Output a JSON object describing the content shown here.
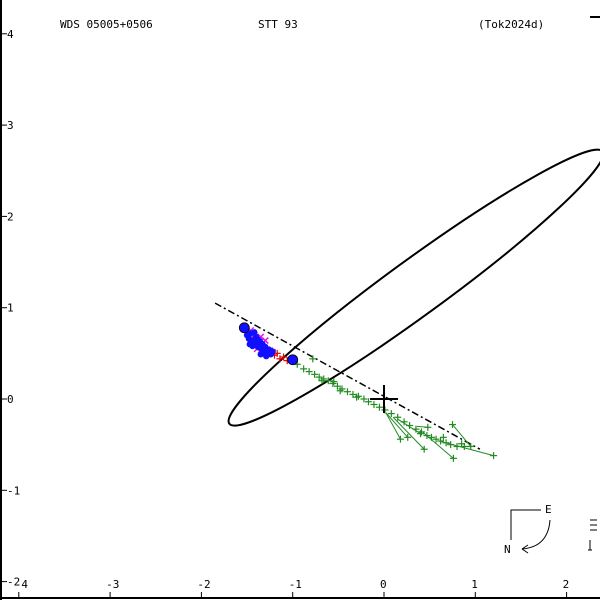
{
  "header": {
    "wds": "WDS 05005+0506",
    "discoverer": "STT  93",
    "reference": "(Tok2024d)"
  },
  "compass": {
    "east": "E",
    "north": "N"
  },
  "chart_data": {
    "type": "scatter",
    "title": "",
    "xlabel": "",
    "ylabel": "",
    "xlim": [
      -4,
      2.2
    ],
    "ylim": [
      -2,
      4.1
    ],
    "x_ticks": [
      -4,
      -3,
      -2,
      -1,
      0,
      1,
      2
    ],
    "x_tick_labels": [
      "-4",
      "-3",
      "-2",
      "-1",
      "0",
      "1",
      "2"
    ],
    "y_ticks": [
      4,
      3,
      2,
      1,
      0,
      -1,
      -2
    ],
    "y_tick_labels": [
      "4",
      "3",
      "2",
      "1",
      "0",
      "-1",
      "-2"
    ],
    "grid": false,
    "primary": [
      0,
      0
    ],
    "orbit": {
      "center": [
        0.35,
        1.22
      ],
      "semi_major": 2.53,
      "semi_minor": 0.305,
      "angle_deg": 36.1
    },
    "line_of_nodes": [
      [
        -1.85,
        1.05
      ],
      [
        1.05,
        -0.55
      ]
    ],
    "series": [
      {
        "name": "",
        "color": "#228B22",
        "marker": "plus",
        "points": [
          [
            -1.02,
            0.42
          ],
          [
            -0.95,
            0.38
          ],
          [
            -0.88,
            0.33
          ],
          [
            -0.82,
            0.3
          ],
          [
            -0.76,
            0.27
          ],
          [
            -0.71,
            0.24
          ],
          [
            -0.66,
            0.22
          ],
          [
            -0.61,
            0.2
          ],
          [
            -0.56,
            0.17
          ],
          [
            -0.51,
            0.14
          ],
          [
            -0.46,
            0.11
          ],
          [
            -0.4,
            0.08
          ],
          [
            -0.34,
            0.05
          ],
          [
            -0.28,
            0.03
          ],
          [
            -0.22,
            0.0
          ],
          [
            -0.17,
            -0.03
          ],
          [
            -0.11,
            -0.06
          ],
          [
            -0.05,
            -0.09
          ],
          [
            0.01,
            -0.12
          ],
          [
            0.08,
            -0.16
          ],
          [
            0.15,
            -0.2
          ],
          [
            0.22,
            -0.25
          ],
          [
            0.28,
            -0.29
          ],
          [
            0.35,
            -0.33
          ],
          [
            0.41,
            -0.36
          ],
          [
            0.47,
            -0.4
          ],
          [
            0.52,
            -0.42
          ],
          [
            0.57,
            -0.44
          ],
          [
            0.62,
            -0.46
          ],
          [
            0.68,
            -0.48
          ],
          [
            0.73,
            -0.5
          ],
          [
            0.8,
            -0.52
          ],
          [
            0.88,
            -0.52
          ],
          [
            0.95,
            -0.52
          ],
          [
            -0.78,
            0.44
          ],
          [
            -0.68,
            0.2
          ],
          [
            -0.55,
            0.19
          ],
          [
            -0.48,
            0.09
          ],
          [
            -0.3,
            0.02
          ],
          [
            0.18,
            -0.44
          ],
          [
            0.26,
            -0.42
          ],
          [
            0.4,
            -0.38
          ],
          [
            0.44,
            -0.55
          ],
          [
            0.48,
            -0.31
          ],
          [
            0.75,
            -0.28
          ],
          [
            0.76,
            -0.65
          ],
          [
            1.2,
            -0.62
          ],
          [
            0.85,
            -0.49
          ],
          [
            0.65,
            -0.42
          ]
        ]
      },
      {
        "name": "",
        "color": "#E11AE1",
        "marker": "x",
        "points": [
          [
            -1.46,
            0.75
          ],
          [
            -1.44,
            0.66
          ],
          [
            -1.4,
            0.62
          ],
          [
            -1.37,
            0.58
          ],
          [
            -1.34,
            0.6
          ],
          [
            -1.31,
            0.56
          ],
          [
            -1.28,
            0.54
          ],
          [
            -1.25,
            0.53
          ],
          [
            -1.22,
            0.51
          ],
          [
            -1.35,
            0.68
          ],
          [
            -1.3,
            0.64
          ],
          [
            -1.42,
            0.7
          ],
          [
            -1.39,
            0.55
          ]
        ]
      },
      {
        "name": "",
        "color": "#E00000",
        "marker": "plus",
        "points": [
          [
            -1.2,
            0.48
          ],
          [
            -1.14,
            0.44
          ],
          [
            -1.1,
            0.46
          ],
          [
            -1.06,
            0.42
          ],
          [
            -1.26,
            0.52
          ],
          [
            -1.17,
            0.5
          ]
        ]
      },
      {
        "name": "",
        "color": "#1010FF",
        "marker": "dot",
        "points": [
          [
            -1.52,
            0.77
          ],
          [
            -1.5,
            0.7
          ],
          [
            -1.48,
            0.66
          ],
          [
            -1.46,
            0.72
          ],
          [
            -1.45,
            0.62
          ],
          [
            -1.43,
            0.64
          ],
          [
            -1.41,
            0.6
          ],
          [
            -1.4,
            0.68
          ],
          [
            -1.38,
            0.57
          ],
          [
            -1.36,
            0.63
          ],
          [
            -1.34,
            0.55
          ],
          [
            -1.33,
            0.6
          ],
          [
            -1.31,
            0.52
          ],
          [
            -1.3,
            0.57
          ],
          [
            -1.28,
            0.5
          ],
          [
            -1.26,
            0.54
          ],
          [
            -1.24,
            0.49
          ],
          [
            -1.22,
            0.52
          ],
          [
            -1.44,
            0.58
          ],
          [
            -1.47,
            0.6
          ],
          [
            -1.35,
            0.49
          ],
          [
            -1.29,
            0.47
          ],
          [
            -1.38,
            0.65
          ],
          [
            -1.42,
            0.73
          ]
        ]
      },
      {
        "name": "",
        "color": "#1010FF",
        "marker": "circle",
        "points": [
          [
            -1.53,
            0.78
          ],
          [
            -1.0,
            0.43
          ]
        ]
      }
    ],
    "green_residual_lines": [
      [
        [
          0.02,
          -0.15
        ],
        [
          0.18,
          -0.44
        ]
      ],
      [
        [
          0.02,
          -0.15
        ],
        [
          0.26,
          -0.42
        ]
      ],
      [
        [
          0.1,
          -0.2
        ],
        [
          0.44,
          -0.55
        ]
      ],
      [
        [
          0.36,
          -0.3
        ],
        [
          0.48,
          -0.31
        ]
      ],
      [
        [
          0.42,
          -0.36
        ],
        [
          0.76,
          -0.65
        ]
      ],
      [
        [
          0.6,
          -0.46
        ],
        [
          1.2,
          -0.62
        ]
      ],
      [
        [
          0.75,
          -0.28
        ],
        [
          0.95,
          -0.52
        ]
      ],
      [
        [
          0.15,
          -0.22
        ],
        [
          0.4,
          -0.38
        ]
      ]
    ]
  }
}
